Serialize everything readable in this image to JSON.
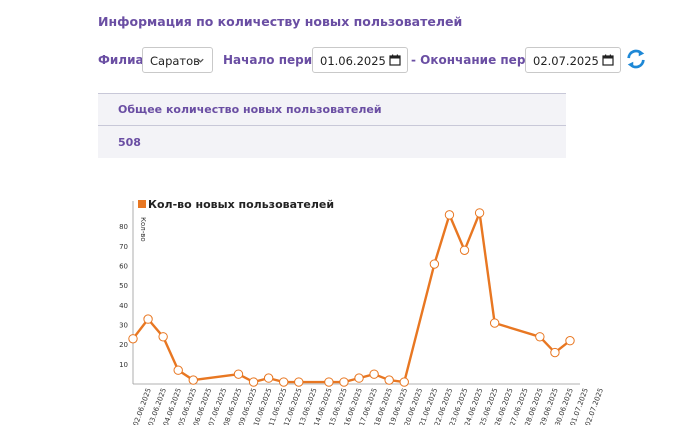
{
  "page": {
    "title": "Информация по количеству новых пользователей"
  },
  "filters": {
    "branch_label": "Филиал:",
    "branch_value": "Саратов",
    "start_label": "Начало периода:",
    "start_value": "01.06.2025",
    "end_label": "- Окончание периода:",
    "end_value": "02.07.2025"
  },
  "summary": {
    "header": "Общее количество новых пользователей",
    "value": "508"
  },
  "colors": {
    "accent": "#6a4ea3",
    "series": "#e87722",
    "refresh": "#1e88d6"
  },
  "chart_data": {
    "type": "line",
    "legend": "Кол-во новых пользователей",
    "ylabel": "Кол-во",
    "ylim": [
      0,
      90
    ],
    "yticks": [
      10,
      20,
      30,
      40,
      50,
      60,
      70,
      80
    ],
    "xticks": [
      "02.06.2025",
      "03.06.2025",
      "04.06.2025",
      "05.06.2025",
      "06.06.2025",
      "07.06.2025",
      "08.06.2025",
      "09.06.2025",
      "10.06.2025",
      "11.06.2025",
      "12.06.2025",
      "13.06.2025",
      "14.06.2025",
      "15.06.2025",
      "16.06.2025",
      "17.06.2025",
      "18.06.2025",
      "19.06.2025",
      "20.06.2025",
      "21.06.2025",
      "22.06.2025",
      "23.06.2025",
      "24.06.2025",
      "25.06.2025",
      "26.06.2025",
      "27.06.2025",
      "28.06.2025",
      "29.06.2025",
      "30.06.2025",
      "01.07.2025",
      "02.07.2025"
    ],
    "points": [
      {
        "x": "01.06.2025",
        "y": 23
      },
      {
        "x": "02.06.2025",
        "y": 33
      },
      {
        "x": "03.06.2025",
        "y": 24
      },
      {
        "x": "04.06.2025",
        "y": 7
      },
      {
        "x": "05.06.2025",
        "y": 2
      },
      {
        "x": "08.06.2025",
        "y": 5
      },
      {
        "x": "09.06.2025",
        "y": 1
      },
      {
        "x": "10.06.2025",
        "y": 3
      },
      {
        "x": "11.06.2025",
        "y": 1
      },
      {
        "x": "12.06.2025",
        "y": 1
      },
      {
        "x": "14.06.2025",
        "y": 1
      },
      {
        "x": "15.06.2025",
        "y": 1
      },
      {
        "x": "16.06.2025",
        "y": 3
      },
      {
        "x": "17.06.2025",
        "y": 5
      },
      {
        "x": "18.06.2025",
        "y": 2
      },
      {
        "x": "19.06.2025",
        "y": 1
      },
      {
        "x": "21.06.2025",
        "y": 61
      },
      {
        "x": "22.06.2025",
        "y": 86
      },
      {
        "x": "23.06.2025",
        "y": 68
      },
      {
        "x": "24.06.2025",
        "y": 87
      },
      {
        "x": "25.06.2025",
        "y": 31
      },
      {
        "x": "28.06.2025",
        "y": 24
      },
      {
        "x": "29.06.2025",
        "y": 16
      },
      {
        "x": "30.06.2025",
        "y": 22
      }
    ]
  }
}
